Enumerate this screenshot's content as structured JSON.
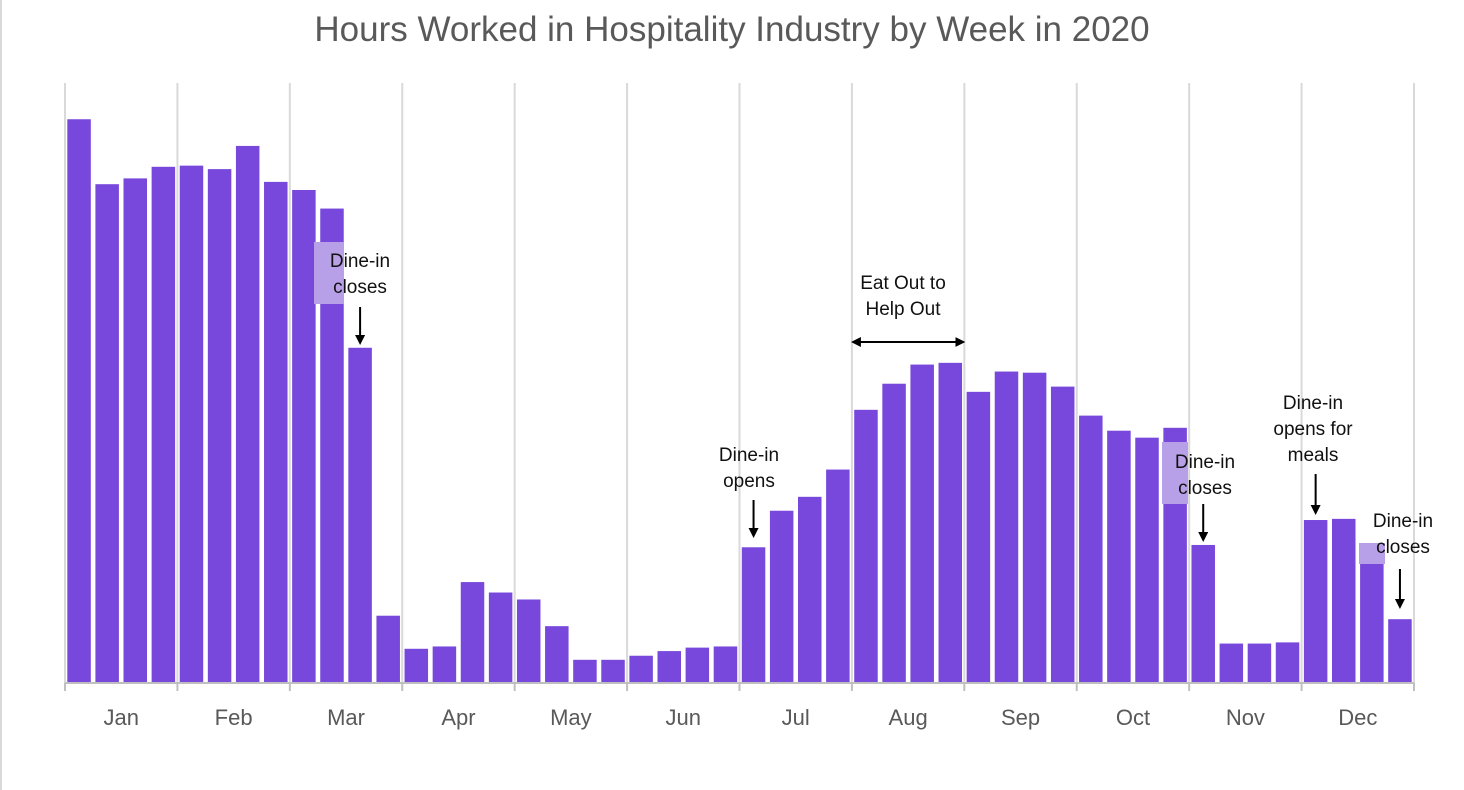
{
  "chart_data": {
    "type": "bar",
    "title": "Hours Worked in Hospitality Industry by Week in 2020",
    "xlabel": "",
    "ylabel": "",
    "ylim": [
      0,
      100
    ],
    "grid": "vertical lines at month boundaries",
    "bar_color": "#7847db",
    "highlight_color": "#b8a0e8",
    "months": [
      "Jan",
      "Feb",
      "Mar",
      "Apr",
      "May",
      "Jun",
      "Jul",
      "Aug",
      "Sep",
      "Oct",
      "Nov",
      "Dec"
    ],
    "weeks_per_month": [
      4,
      4,
      4,
      4,
      4,
      4,
      4,
      4,
      4,
      4,
      4,
      4
    ],
    "values": [
      97.2,
      86.0,
      87.0,
      89.0,
      89.2,
      88.6,
      92.6,
      86.4,
      85.0,
      81.8,
      57.8,
      11.6,
      5.9,
      6.3,
      17.4,
      15.6,
      14.4,
      9.8,
      4.0,
      4.0,
      4.7,
      5.5,
      6.1,
      6.3,
      23.4,
      29.7,
      32.1,
      36.8,
      47.1,
      51.6,
      54.9,
      55.2,
      50.2,
      53.7,
      53.5,
      51.1,
      46.1,
      43.5,
      42.3,
      44.0,
      23.8,
      6.8,
      6.8,
      7.0,
      28.1,
      28.3,
      23.8,
      11.0
    ],
    "annotations": [
      {
        "lines": [
          "Dine-in",
          "closes"
        ],
        "week_index": 10,
        "arrow": "down",
        "target_week": 10
      },
      {
        "lines": [
          "Dine-in",
          "opens"
        ],
        "week_index": 24,
        "arrow": "down",
        "target_week": 24
      },
      {
        "lines": [
          "Eat Out to",
          "Help Out"
        ],
        "week_index": 29,
        "arrow": "both",
        "span_month": "Aug"
      },
      {
        "lines": [
          "Dine-in",
          "closes"
        ],
        "week_index": 40,
        "arrow": "down",
        "target_week": 40
      },
      {
        "lines": [
          "Dine-in",
          "opens for",
          "meals"
        ],
        "week_index": 44,
        "arrow": "down",
        "target_week": 44
      },
      {
        "lines": [
          "Dine-in",
          "closes"
        ],
        "week_index": 47,
        "arrow": "down",
        "target_week": 47
      }
    ]
  }
}
